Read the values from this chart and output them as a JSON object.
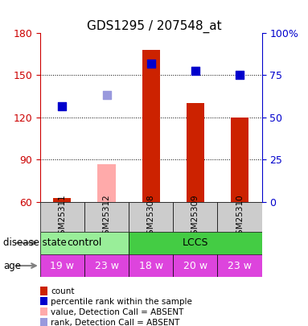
{
  "title": "GDS1295 / 207548_at",
  "samples": [
    "GSM25311",
    "GSM25312",
    "GSM25308",
    "GSM25309",
    "GSM25310"
  ],
  "bar_values_red": [
    63,
    null,
    168,
    130,
    120
  ],
  "bar_values_pink": [
    null,
    87,
    null,
    null,
    null
  ],
  "dot_blue_dark": [
    128,
    null,
    158,
    153,
    150
  ],
  "dot_blue_light": [
    null,
    136,
    null,
    null,
    null
  ],
  "ylim_left": [
    60,
    180
  ],
  "ylim_right": [
    0,
    100
  ],
  "yticks_left": [
    60,
    90,
    120,
    150,
    180
  ],
  "yticks_right": [
    0,
    25,
    50,
    75,
    100
  ],
  "ylabel_left_color": "#cc0000",
  "ylabel_right_color": "#0000cc",
  "bar_color_red": "#cc2200",
  "bar_color_pink": "#ffaaaa",
  "dot_color_dark_blue": "#0000cc",
  "dot_color_light_blue": "#9999dd",
  "disease_state": [
    "control",
    "control",
    "LCCS",
    "LCCS",
    "LCCS"
  ],
  "disease_state_colors": {
    "control": "#99ee99",
    "LCCS": "#44cc44"
  },
  "age": [
    "19 w",
    "23 w",
    "18 w",
    "20 w",
    "23 w"
  ],
  "age_color": "#dd44dd",
  "sample_bg_color": "#cccccc",
  "legend_items": [
    {
      "color": "#cc2200",
      "label": "count"
    },
    {
      "color": "#0000cc",
      "label": "percentile rank within the sample"
    },
    {
      "color": "#ffaaaa",
      "label": "value, Detection Call = ABSENT"
    },
    {
      "color": "#9999dd",
      "label": "rank, Detection Call = ABSENT"
    }
  ],
  "bar_width": 0.4,
  "dot_size": 60,
  "grid_color": "#000000",
  "base_value": 60
}
